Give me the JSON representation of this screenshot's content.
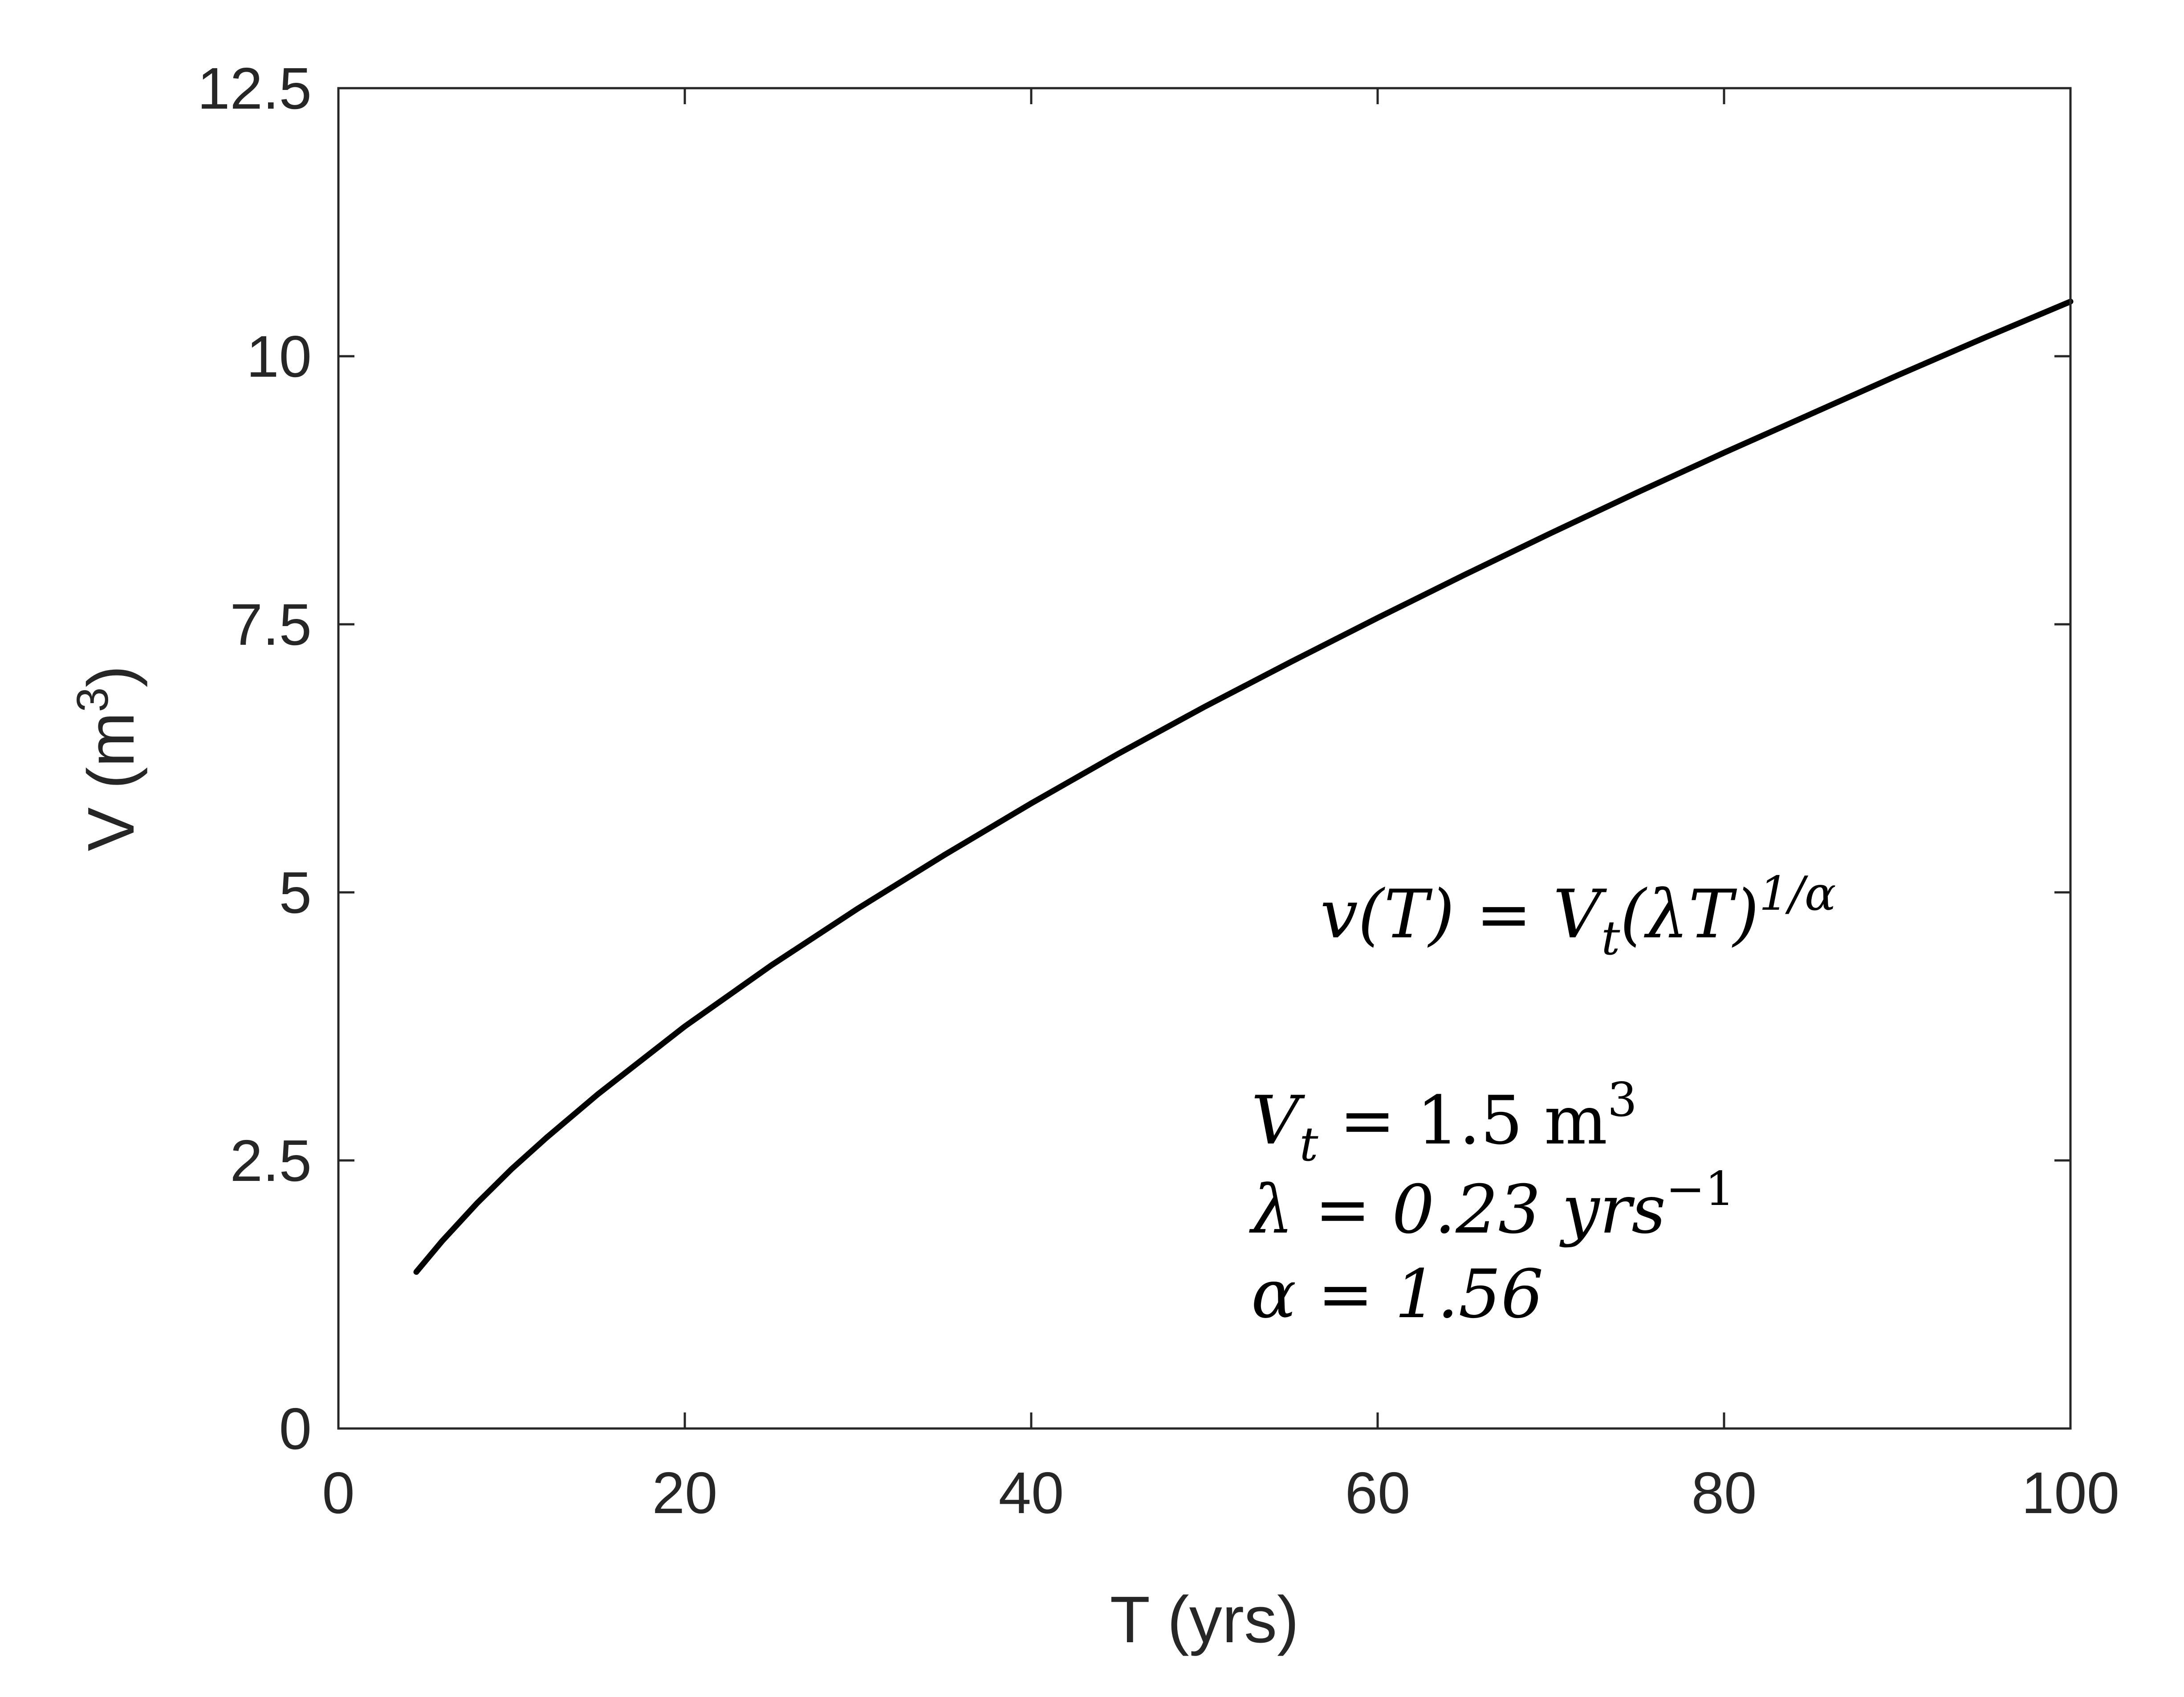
{
  "chart_data": {
    "type": "line",
    "xlabel": "T (yrs)",
    "ylabel_main": "V (m",
    "ylabel_sup": "3",
    "ylabel_close": ")",
    "xlim": [
      0,
      100
    ],
    "ylim": [
      0,
      12.5
    ],
    "xticks": [
      0,
      20,
      40,
      60,
      80,
      100
    ],
    "xtick_labels": [
      "0",
      "20",
      "40",
      "60",
      "80",
      "100"
    ],
    "yticks": [
      0,
      2.5,
      5,
      7.5,
      10,
      12.5
    ],
    "ytick_labels": [
      "0",
      "2.5",
      "5",
      "7.5",
      "10",
      "12.5"
    ],
    "grid": false,
    "line_color": "#000000",
    "series": [
      {
        "x": [
          4.5,
          6,
          8,
          10,
          12,
          15,
          20,
          25,
          30,
          35,
          40,
          45,
          50,
          55,
          60,
          65,
          70,
          75,
          80,
          85,
          90,
          95,
          100
        ],
        "y": [
          1.46,
          1.75,
          2.1,
          2.42,
          2.71,
          3.12,
          3.75,
          4.32,
          4.85,
          5.35,
          5.83,
          6.29,
          6.73,
          7.15,
          7.56,
          7.96,
          8.35,
          8.73,
          9.1,
          9.46,
          9.82,
          10.17,
          10.51
        ]
      }
    ],
    "annotations": {
      "formula_main": "v(T) = V",
      "formula_sub": "t",
      "formula_rest": "(λT)",
      "formula_sup": "1/α",
      "vt_main": "V",
      "vt_sub": "t",
      "vt_rest": " = 1.5 m",
      "vt_sup": "3",
      "lambda_main": "λ = 0.23 yrs",
      "lambda_sup": "−1",
      "alpha_text": "α = 1.56"
    }
  }
}
